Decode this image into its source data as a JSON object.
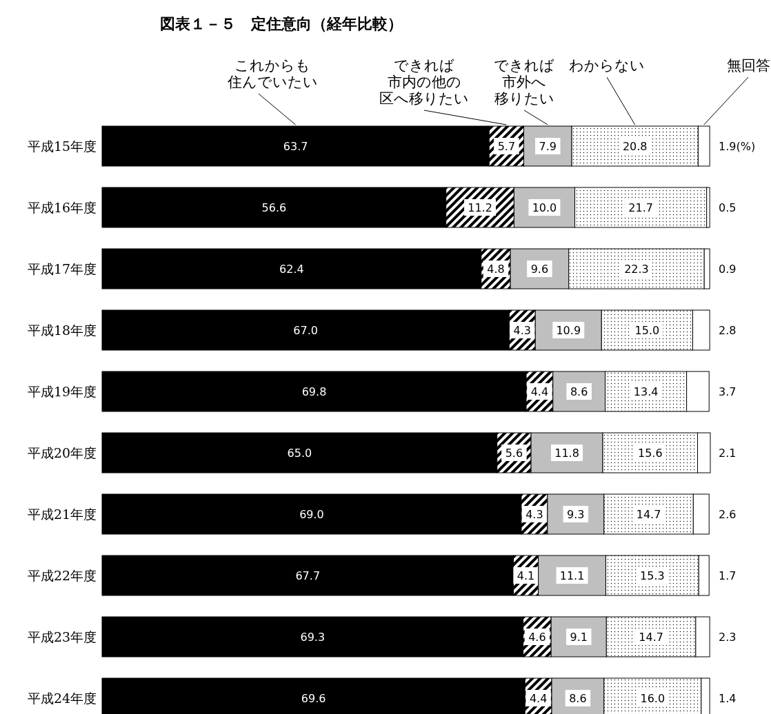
{
  "chart_data": {
    "type": "bar",
    "orientation": "horizontal",
    "stacked": true,
    "legend": false,
    "title": "図表１－５　定住意向（経年比較）",
    "categories": [
      "平成15年度",
      "平成16年度",
      "平成17年度",
      "平成18年度",
      "平成19年度",
      "平成20年度",
      "平成21年度",
      "平成22年度",
      "平成23年度",
      "平成24年度"
    ],
    "series": [
      {
        "name": "これからも住んでいたい",
        "color": "#000000",
        "values": [
          63.7,
          56.6,
          62.4,
          67.0,
          69.8,
          65.0,
          69.0,
          67.7,
          69.3,
          69.6
        ],
        "value_labels": [
          "63.7",
          "56.6",
          "62.4",
          "67.0",
          "69.8",
          "65.0",
          "69.0",
          "67.7",
          "69.3",
          "69.6"
        ]
      },
      {
        "name": "できれば市内の他の区へ移りたい",
        "color": "#000000",
        "values": [
          5.7,
          11.2,
          4.8,
          4.3,
          4.4,
          5.6,
          4.3,
          4.1,
          4.6,
          4.4
        ],
        "value_labels": [
          "5.7",
          "11.2",
          "4.8",
          "4.3",
          "4.4",
          "5.6",
          "4.3",
          "4.1",
          "4.6",
          "4.4"
        ]
      },
      {
        "name": "できれば市外へ移りたい",
        "color": "#bfbfbf",
        "values": [
          7.9,
          10.0,
          9.6,
          10.9,
          8.6,
          11.8,
          9.3,
          11.1,
          9.1,
          8.6
        ],
        "value_labels": [
          "7.9",
          "10.0",
          "9.6",
          "10.9",
          "8.6",
          "11.8",
          "9.3",
          "11.1",
          "9.1",
          "8.6"
        ]
      },
      {
        "name": "わからない",
        "color": "#000000",
        "values": [
          20.8,
          21.7,
          22.3,
          15.0,
          13.4,
          15.6,
          14.7,
          15.3,
          14.7,
          16.0
        ],
        "value_labels": [
          "20.8",
          "21.7",
          "22.3",
          "15.0",
          "13.4",
          "15.6",
          "14.7",
          "15.3",
          "14.7",
          "16.0"
        ]
      },
      {
        "name": "無回答",
        "color": "#ffffff",
        "values": [
          1.9,
          0.5,
          0.9,
          2.8,
          3.7,
          2.1,
          2.6,
          1.7,
          2.3,
          1.4
        ],
        "value_labels": [
          "1.9(%)",
          "0.5",
          "0.9",
          "2.8",
          "3.7",
          "2.1",
          "2.6",
          "1.7",
          "2.3",
          "1.4"
        ]
      }
    ]
  }
}
